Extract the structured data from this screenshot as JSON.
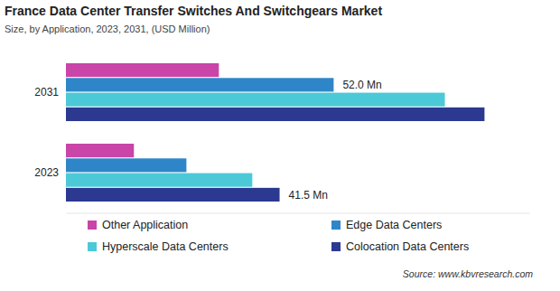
{
  "chart_data": {
    "type": "bar",
    "orientation": "horizontal",
    "title": "France Data Center Transfer Switches And Switchgears Market",
    "subtitle": "Size, by Application, 2023, 2031, (USD Million)",
    "source": "Source: www.kbvresearch.com",
    "categories": [
      "2031",
      "2023"
    ],
    "series": [
      {
        "name": "Other Application",
        "color": "#c945a8",
        "values": [
          29.7,
          13.2
        ],
        "value_labels": [
          null,
          null
        ]
      },
      {
        "name": "Edge Data Centers",
        "color": "#2e86c8",
        "values": [
          52.0,
          23.4
        ],
        "value_labels": [
          "52.0 Mn",
          null
        ]
      },
      {
        "name": "Hyperscale Data Centers",
        "color": "#4cc9d6",
        "values": [
          73.6,
          36.2
        ],
        "value_labels": [
          null,
          null
        ]
      },
      {
        "name": "Colocation Data Centers",
        "color": "#2b3990",
        "values": [
          81.3,
          41.5
        ],
        "value_labels": [
          null,
          "41.5 Mn"
        ]
      }
    ],
    "xlim": [
      0,
      90
    ],
    "xticks": [],
    "tick_labels": "y",
    "grid": false,
    "data_labels": true,
    "legend": "bottom"
  }
}
